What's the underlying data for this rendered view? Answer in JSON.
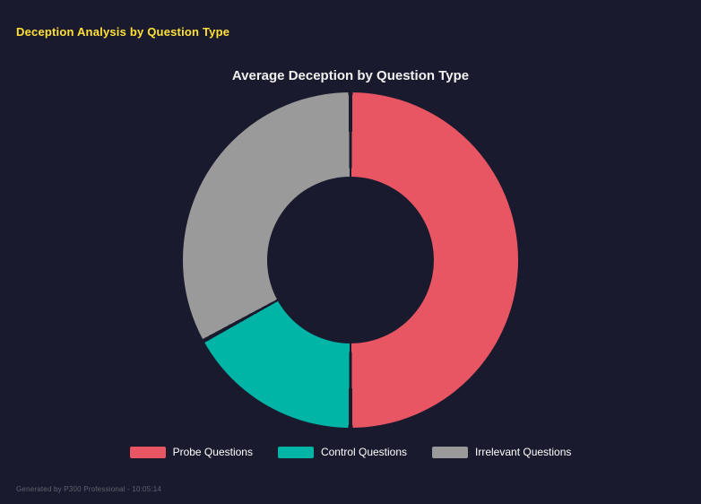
{
  "page": {
    "title": "Deception Analysis by Question Type",
    "footer": "Generated by P300 Professional - 10:05:14"
  },
  "colors": {
    "background": "#1a1a2e",
    "title_accent": "#ffe135",
    "chart_title_text": "#f0f0f0",
    "legend_text": "#ffffff",
    "footer_text": "#61616f"
  },
  "chart_data": {
    "type": "pie",
    "subtype": "donut",
    "title": "Average Deception by Question Type",
    "labels": [
      "Probe Questions",
      "Control Questions",
      "Irrelevant Questions"
    ],
    "values": [
      50,
      17,
      33
    ],
    "unit": "percent-of-circle (estimated from arc angles)",
    "colors": [
      "#e95663",
      "#00b5a5",
      "#9a9a9a"
    ],
    "cutout_percent": 50,
    "start_angle_deg": 0,
    "direction": "clockwise",
    "legend_position": "bottom",
    "grid": false
  }
}
